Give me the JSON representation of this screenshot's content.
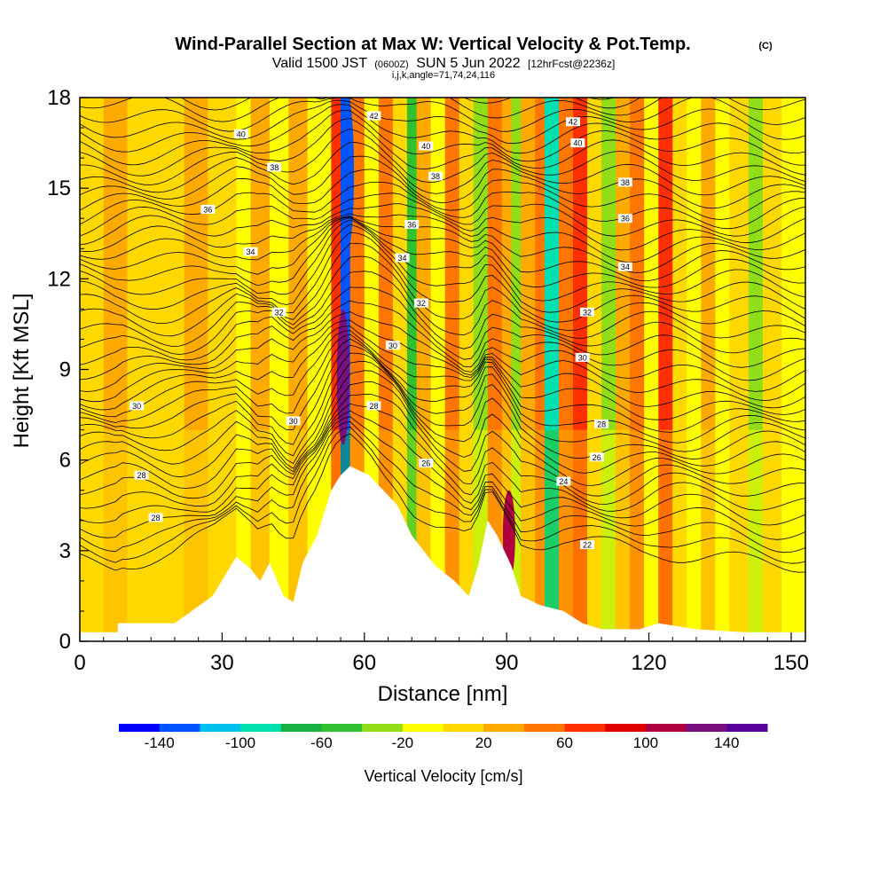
{
  "chart_data": {
    "type": "heatmap",
    "title": "Wind-Parallel Section at Max W: Vertical Velocity & Pot.Temp.",
    "title_mark": "(C)",
    "subtitle": {
      "valid": "Valid 1500 JST",
      "utc": "(0600Z)",
      "date": "SUN 5 Jun 2022",
      "forecast": "[12hrFcst@2236z]"
    },
    "ijk_line": "i,j,k,angle=71,74,24,116",
    "xlabel": "Distance [nm]",
    "ylabel": "Height [Kft MSL]",
    "xlim": [
      0,
      153
    ],
    "ylim": [
      0,
      18
    ],
    "x_ticks": [
      0,
      30,
      60,
      90,
      120,
      150
    ],
    "y_ticks": [
      0,
      3,
      6,
      9,
      12,
      15,
      18
    ],
    "field": "vertical velocity (cm/s)",
    "grid": false,
    "terrain_profile_kft": [
      [
        0,
        0.3
      ],
      [
        8,
        0.3
      ],
      [
        8,
        0.6
      ],
      [
        20,
        0.6
      ],
      [
        28,
        1.5
      ],
      [
        33,
        2.8
      ],
      [
        36,
        2.4
      ],
      [
        38,
        2.0
      ],
      [
        40,
        2.6
      ],
      [
        43,
        1.5
      ],
      [
        45,
        1.3
      ],
      [
        47,
        2.6
      ],
      [
        50,
        3.5
      ],
      [
        53,
        5.0
      ],
      [
        55,
        5.5
      ],
      [
        57,
        5.8
      ],
      [
        61,
        5.5
      ],
      [
        64,
        5.0
      ],
      [
        67,
        4.5
      ],
      [
        70,
        3.5
      ],
      [
        75,
        2.5
      ],
      [
        79,
        2.0
      ],
      [
        82,
        1.5
      ],
      [
        84,
        2.5
      ],
      [
        86,
        4.0
      ],
      [
        88,
        3.5
      ],
      [
        91,
        2.5
      ],
      [
        93,
        1.5
      ],
      [
        97,
        1.2
      ],
      [
        102,
        1.0
      ],
      [
        106,
        0.6
      ],
      [
        110,
        0.4
      ],
      [
        118,
        0.4
      ],
      [
        122,
        0.6
      ],
      [
        130,
        0.4
      ],
      [
        140,
        0.3
      ],
      [
        153,
        0.3
      ]
    ],
    "velocity_bands_cm_s": [
      {
        "x": [
          0,
          5
        ],
        "w": 5
      },
      {
        "x": [
          5,
          10
        ],
        "w": 20
      },
      {
        "x": [
          10,
          22
        ],
        "w": 15
      },
      {
        "x": [
          22,
          27
        ],
        "w": 25
      },
      {
        "x": [
          27,
          33
        ],
        "w": 10
      },
      {
        "x": [
          33,
          36
        ],
        "w": -15
      },
      {
        "x": [
          36,
          40
        ],
        "w": 20
      },
      {
        "x": [
          40,
          44
        ],
        "w": -20
      },
      {
        "x": [
          44,
          48
        ],
        "w": 25
      },
      {
        "x": [
          48,
          53
        ],
        "w": -10
      },
      {
        "x": [
          53,
          55
        ],
        "w": 60
      },
      {
        "x": [
          55,
          57
        ],
        "w": -130
      },
      {
        "x": [
          57,
          60
        ],
        "w": 40
      },
      {
        "x": [
          60,
          63
        ],
        "w": -15
      },
      {
        "x": [
          63,
          66
        ],
        "w": 45
      },
      {
        "x": [
          66,
          69
        ],
        "w": 10
      },
      {
        "x": [
          69,
          71
        ],
        "w": -60
      },
      {
        "x": [
          71,
          74
        ],
        "w": 35
      },
      {
        "x": [
          74,
          77
        ],
        "w": -20
      },
      {
        "x": [
          77,
          80
        ],
        "w": 50
      },
      {
        "x": [
          80,
          83
        ],
        "w": 15
      },
      {
        "x": [
          83,
          86
        ],
        "w": -25
      },
      {
        "x": [
          86,
          89
        ],
        "w": 55
      },
      {
        "x": [
          89,
          91
        ],
        "w": 20
      },
      {
        "x": [
          91,
          93
        ],
        "w": -40
      },
      {
        "x": [
          93,
          96
        ],
        "w": 20
      },
      {
        "x": [
          96,
          98
        ],
        "w": 45
      },
      {
        "x": [
          98,
          101
        ],
        "w": -85
      },
      {
        "x": [
          101,
          104
        ],
        "w": 40
      },
      {
        "x": [
          104,
          107
        ],
        "w": 75
      },
      {
        "x": [
          107,
          110
        ],
        "w": 15
      },
      {
        "x": [
          110,
          113
        ],
        "w": -30
      },
      {
        "x": [
          113,
          116
        ],
        "w": 30
      },
      {
        "x": [
          116,
          119
        ],
        "w": 55
      },
      {
        "x": [
          119,
          122
        ],
        "w": -15
      },
      {
        "x": [
          122,
          125
        ],
        "w": 65
      },
      {
        "x": [
          125,
          128
        ],
        "w": 10
      },
      {
        "x": [
          128,
          131
        ],
        "w": -20
      },
      {
        "x": [
          131,
          134
        ],
        "w": 25
      },
      {
        "x": [
          134,
          137
        ],
        "w": -10
      },
      {
        "x": [
          137,
          141
        ],
        "w": 15
      },
      {
        "x": [
          141,
          144
        ],
        "w": -25
      },
      {
        "x": [
          144,
          148
        ],
        "w": 5
      },
      {
        "x": [
          148,
          153
        ],
        "w": -15
      }
    ],
    "velocity_hotspots_cm_s": [
      {
        "x": 55.5,
        "y": [
          6.5,
          11
        ],
        "w": 130
      },
      {
        "x": 56.5,
        "y": [
          13,
          18
        ],
        "w": -140
      },
      {
        "x": 90.5,
        "y": [
          2,
          5
        ],
        "w": 100
      }
    ],
    "isentropes": {
      "variable": "potential temperature",
      "levels": [
        22,
        24,
        26,
        28,
        30,
        32,
        34,
        36,
        38,
        40,
        42
      ],
      "labels": [
        {
          "text": "42",
          "x": 62,
          "y": 17.4
        },
        {
          "text": "40",
          "x": 34,
          "y": 16.8
        },
        {
          "text": "38",
          "x": 41,
          "y": 15.7
        },
        {
          "text": "36",
          "x": 27,
          "y": 14.3
        },
        {
          "text": "34",
          "x": 36,
          "y": 12.9
        },
        {
          "text": "32",
          "x": 42,
          "y": 10.9
        },
        {
          "text": "30",
          "x": 12,
          "y": 7.8
        },
        {
          "text": "28",
          "x": 13,
          "y": 5.5
        },
        {
          "text": "28",
          "x": 16,
          "y": 4.1
        },
        {
          "text": "30",
          "x": 45,
          "y": 7.3
        },
        {
          "text": "30",
          "x": 66,
          "y": 9.8
        },
        {
          "text": "28",
          "x": 62,
          "y": 7.8
        },
        {
          "text": "26",
          "x": 73,
          "y": 5.9
        },
        {
          "text": "40",
          "x": 73,
          "y": 16.4
        },
        {
          "text": "38",
          "x": 75,
          "y": 15.4
        },
        {
          "text": "36",
          "x": 70,
          "y": 13.8
        },
        {
          "text": "34",
          "x": 68,
          "y": 12.7
        },
        {
          "text": "32",
          "x": 72,
          "y": 11.2
        },
        {
          "text": "42",
          "x": 104,
          "y": 17.2
        },
        {
          "text": "40",
          "x": 105,
          "y": 16.5
        },
        {
          "text": "38",
          "x": 115,
          "y": 15.2
        },
        {
          "text": "36",
          "x": 115,
          "y": 14.0
        },
        {
          "text": "34",
          "x": 115,
          "y": 12.4
        },
        {
          "text": "32",
          "x": 107,
          "y": 10.9
        },
        {
          "text": "30",
          "x": 106,
          "y": 9.4
        },
        {
          "text": "28",
          "x": 110,
          "y": 7.2
        },
        {
          "text": "26",
          "x": 109,
          "y": 6.1
        },
        {
          "text": "24",
          "x": 102,
          "y": 5.3
        },
        {
          "text": "22",
          "x": 107,
          "y": 3.2
        }
      ]
    },
    "colorbar": {
      "label": "Vertical Velocity [cm/s]",
      "tick_labels": [
        "-140",
        "-100",
        "-60",
        "-20",
        "20",
        "60",
        "100",
        "140"
      ],
      "tick_values": [
        -140,
        -100,
        -60,
        -20,
        20,
        60,
        100,
        140
      ],
      "range": [
        -160,
        160
      ],
      "colors": [
        "#0000ff",
        "#0055ff",
        "#00c0f0",
        "#00e0b0",
        "#18b040",
        "#30c030",
        "#90dd18",
        "#ffff00",
        "#ffd800",
        "#ffaa00",
        "#ff7700",
        "#ff3000",
        "#e00000",
        "#b00040",
        "#7a1080",
        "#5a009a"
      ]
    }
  }
}
